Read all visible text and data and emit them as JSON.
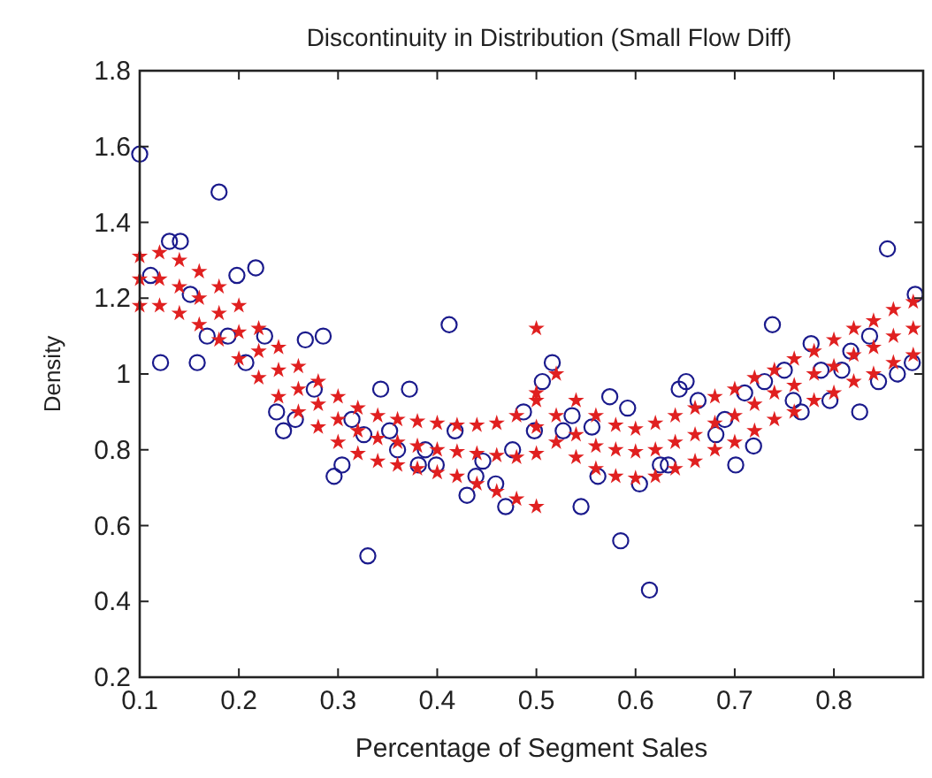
{
  "chart_data": {
    "type": "scatter",
    "title": "Discontinuity in Distribution (Small Flow Diff)",
    "xlabel": "Percentage of Segment Sales",
    "ylabel": "Density",
    "xlim": [
      0.1,
      0.89
    ],
    "ylim": [
      0.2,
      1.8
    ],
    "xticks": [
      0.1,
      0.2,
      0.3,
      0.4,
      0.5,
      0.6,
      0.7,
      0.8
    ],
    "yticks": [
      0.2,
      0.4,
      0.6,
      0.8,
      1,
      1.2,
      1.4,
      1.6,
      1.8
    ],
    "series": [
      {
        "color": "#1a1a8c",
        "marker": "circle",
        "x": [
          0.1,
          0.18,
          0.13,
          0.141,
          0.111,
          0.151,
          0.198,
          0.217,
          0.168,
          0.189,
          0.226,
          0.267,
          0.285,
          0.412,
          0.121,
          0.158,
          0.207,
          0.343,
          0.372,
          0.238,
          0.245,
          0.257,
          0.276,
          0.296,
          0.304,
          0.314,
          0.326,
          0.33,
          0.352,
          0.36,
          0.381,
          0.388,
          0.399,
          0.418,
          0.43,
          0.439,
          0.446,
          0.459,
          0.469,
          0.476,
          0.487,
          0.506,
          0.516,
          0.574,
          0.592,
          0.644,
          0.651,
          0.738,
          0.854,
          0.882,
          0.777,
          0.817,
          0.836,
          0.787,
          0.808,
          0.75,
          0.498,
          0.527,
          0.536,
          0.556,
          0.562,
          0.545,
          0.585,
          0.614,
          0.604,
          0.625,
          0.633,
          0.663,
          0.681,
          0.69,
          0.701,
          0.71,
          0.719,
          0.73,
          0.759,
          0.767,
          0.796,
          0.826,
          0.845,
          0.864,
          0.879
        ],
        "values": [
          1.58,
          1.48,
          1.35,
          1.35,
          1.26,
          1.21,
          1.26,
          1.28,
          1.1,
          1.1,
          1.1,
          1.09,
          1.1,
          1.13,
          1.03,
          1.03,
          1.03,
          0.96,
          0.96,
          0.9,
          0.85,
          0.88,
          0.96,
          0.73,
          0.76,
          0.88,
          0.84,
          0.52,
          0.85,
          0.8,
          0.76,
          0.8,
          0.76,
          0.85,
          0.68,
          0.73,
          0.77,
          0.71,
          0.65,
          0.8,
          0.9,
          0.98,
          1.03,
          0.94,
          0.91,
          0.96,
          0.98,
          1.13,
          1.33,
          1.21,
          1.08,
          1.06,
          1.1,
          1.01,
          1.01,
          1.01,
          0.85,
          0.85,
          0.89,
          0.86,
          0.73,
          0.65,
          0.56,
          0.43,
          0.71,
          0.76,
          0.76,
          0.93,
          0.84,
          0.88,
          0.76,
          0.95,
          0.81,
          0.98,
          0.93,
          0.9,
          0.93,
          0.9,
          0.98,
          1,
          1.03
        ]
      },
      {
        "color": "#e02020",
        "marker": "star",
        "x": [
          0.1,
          0.12,
          0.14,
          0.16,
          0.18,
          0.2,
          0.22,
          0.24,
          0.26,
          0.28,
          0.3,
          0.32,
          0.34,
          0.36,
          0.38,
          0.4,
          0.42,
          0.44,
          0.46,
          0.48,
          0.5,
          0.5,
          0.52,
          0.54,
          0.56,
          0.58,
          0.6,
          0.62,
          0.64,
          0.66,
          0.68,
          0.7,
          0.72,
          0.74,
          0.76,
          0.78,
          0.8,
          0.82,
          0.84,
          0.86,
          0.88
        ],
        "values": [
          1.31,
          1.32,
          1.3,
          1.27,
          1.23,
          1.18,
          1.12,
          1.07,
          1.02,
          0.98,
          0.94,
          0.91,
          0.89,
          0.88,
          0.875,
          0.87,
          0.865,
          0.865,
          0.87,
          0.89,
          0.93,
          1.12,
          1,
          0.93,
          0.89,
          0.865,
          0.855,
          0.87,
          0.89,
          0.91,
          0.94,
          0.96,
          0.99,
          1.01,
          1.04,
          1.06,
          1.09,
          1.12,
          1.14,
          1.17,
          1.19
        ]
      },
      {
        "color": "#e02020",
        "marker": "star",
        "x": [
          0.1,
          0.12,
          0.14,
          0.16,
          0.18,
          0.2,
          0.22,
          0.24,
          0.26,
          0.28,
          0.3,
          0.32,
          0.34,
          0.36,
          0.38,
          0.4,
          0.42,
          0.44,
          0.46,
          0.48,
          0.5,
          0.5,
          0.52,
          0.54,
          0.56,
          0.58,
          0.6,
          0.62,
          0.64,
          0.66,
          0.68,
          0.7,
          0.72,
          0.74,
          0.76,
          0.78,
          0.8,
          0.82,
          0.84,
          0.86,
          0.88
        ],
        "values": [
          1.25,
          1.25,
          1.23,
          1.2,
          1.16,
          1.11,
          1.06,
          1.01,
          0.96,
          0.92,
          0.88,
          0.85,
          0.83,
          0.82,
          0.81,
          0.8,
          0.795,
          0.79,
          0.785,
          0.78,
          0.79,
          0.95,
          0.89,
          0.84,
          0.81,
          0.8,
          0.795,
          0.8,
          0.82,
          0.84,
          0.87,
          0.89,
          0.92,
          0.95,
          0.97,
          1,
          1.02,
          1.05,
          1.07,
          1.1,
          1.12
        ]
      },
      {
        "color": "#e02020",
        "marker": "star",
        "x": [
          0.1,
          0.12,
          0.14,
          0.16,
          0.18,
          0.2,
          0.22,
          0.24,
          0.26,
          0.28,
          0.3,
          0.32,
          0.34,
          0.36,
          0.38,
          0.4,
          0.42,
          0.44,
          0.46,
          0.48,
          0.5,
          0.5,
          0.52,
          0.54,
          0.56,
          0.58,
          0.6,
          0.62,
          0.64,
          0.66,
          0.68,
          0.7,
          0.72,
          0.74,
          0.76,
          0.78,
          0.8,
          0.82,
          0.84,
          0.86,
          0.88
        ],
        "values": [
          1.18,
          1.18,
          1.16,
          1.13,
          1.09,
          1.04,
          0.99,
          0.94,
          0.9,
          0.86,
          0.82,
          0.79,
          0.77,
          0.76,
          0.75,
          0.74,
          0.73,
          0.71,
          0.69,
          0.67,
          0.65,
          0.86,
          0.82,
          0.78,
          0.75,
          0.73,
          0.725,
          0.73,
          0.75,
          0.77,
          0.8,
          0.82,
          0.85,
          0.88,
          0.9,
          0.93,
          0.95,
          0.98,
          1,
          1.03,
          1.05
        ]
      }
    ]
  }
}
